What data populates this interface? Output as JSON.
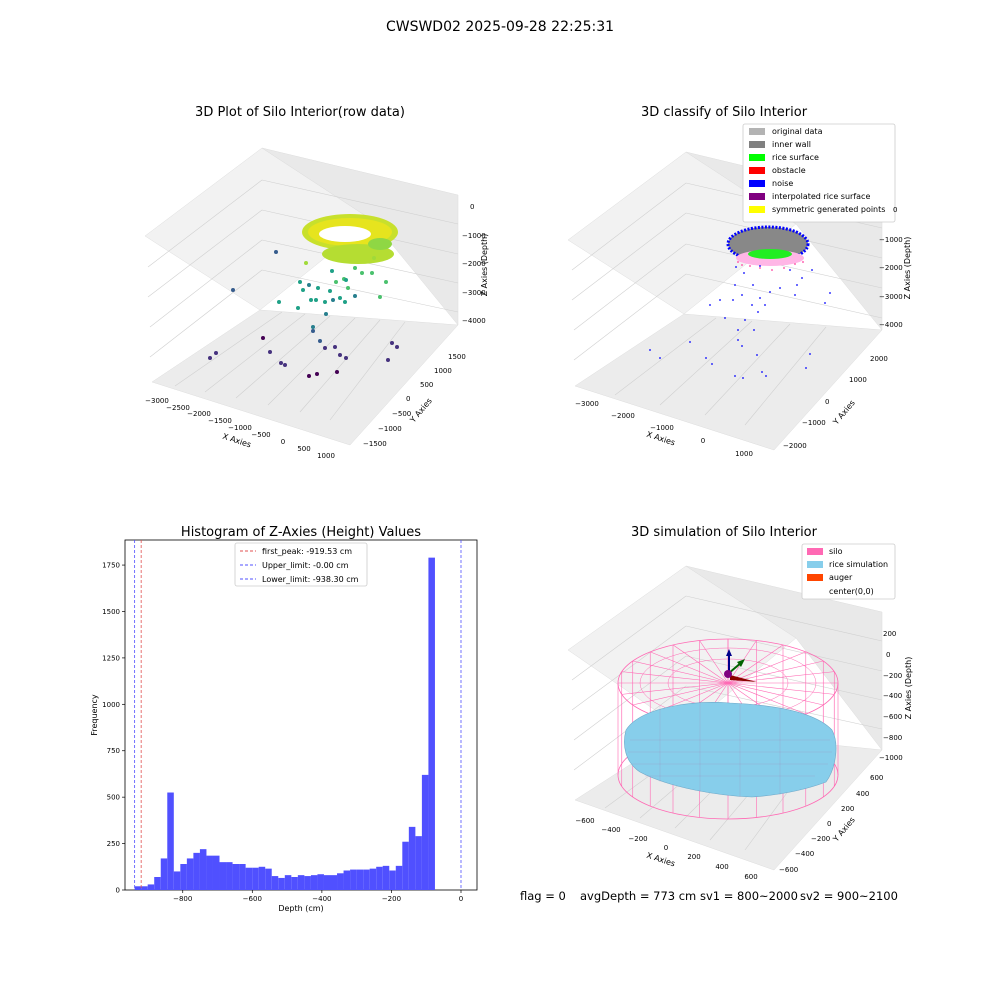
{
  "figure": {
    "suptitle": "CWSWD02 2025-09-28 22:25:31",
    "footer": {
      "flag": "flag = 0",
      "avg_depth": "avgDepth = 773 cm",
      "sv1": "sv1 = 800~2000",
      "sv2": "sv2 = 900~2100"
    }
  },
  "chart_data": [
    {
      "type": "scatter",
      "title": "3D Plot of Silo Interior(row data)",
      "xlabel": "X Axies",
      "ylabel": "Y Axies",
      "zlabel": "Z Axies (Depth)",
      "x_ticks": [
        "−3000",
        "−2500",
        "−2000",
        "−1500",
        "−1000",
        "−500",
        "0",
        "500",
        "1000"
      ],
      "y_ticks": [
        "1500",
        "1000",
        "500",
        "0",
        "−500",
        "−1000",
        "−1500"
      ],
      "z_ticks": [
        "0",
        "−1000",
        "−2000",
        "−3000",
        "−4000"
      ],
      "colormap": "viridis",
      "colors": [
        "#fde725",
        "#a0da39",
        "#4ac16d",
        "#1fa187",
        "#277f8e",
        "#365c8d",
        "#46327e",
        "#440154"
      ]
    },
    {
      "type": "scatter",
      "title": "3D classify of Silo Interior",
      "xlabel": "X Axies",
      "ylabel": "Y Axies",
      "zlabel": "Z Axies (Depth)",
      "x_ticks": [
        "−3000",
        "−2000",
        "−1000",
        "0",
        "1000"
      ],
      "y_ticks": [
        "2000",
        "1000",
        "0",
        "−1000",
        "−2000"
      ],
      "z_ticks": [
        "0",
        "−1000",
        "−2000",
        "−3000",
        "−4000"
      ],
      "legend": [
        {
          "label": "original data",
          "color": "#b3b3b3"
        },
        {
          "label": "inner wall",
          "color": "#808080"
        },
        {
          "label": "rice surface",
          "color": "#00ff00"
        },
        {
          "label": "obstacle",
          "color": "#ff0000"
        },
        {
          "label": "noise",
          "color": "#0000ff"
        },
        {
          "label": "interpolated rice surface",
          "color": "#800080"
        },
        {
          "label": "symmetric generated points",
          "color": "#ffff00"
        }
      ],
      "legend_placement": "upper-right"
    },
    {
      "type": "bar",
      "title": "Histogram of Z-Axies (Height) Values",
      "xlabel": "Depth (cm)",
      "ylabel": "Frequency",
      "xlim": [
        -966,
        46
      ],
      "ylim": [
        0,
        1885
      ],
      "x_ticks": [
        -800,
        -600,
        -400,
        -200,
        0
      ],
      "y_ticks": [
        0,
        250,
        500,
        750,
        1000,
        1250,
        1500,
        1750
      ],
      "bin_start": -938.3,
      "bin_width": 18.77,
      "values": [
        20,
        20,
        30,
        70,
        170,
        525,
        100,
        140,
        170,
        200,
        220,
        185,
        185,
        150,
        150,
        140,
        140,
        120,
        120,
        125,
        115,
        75,
        65,
        80,
        70,
        80,
        75,
        80,
        85,
        80,
        80,
        90,
        105,
        110,
        110,
        110,
        115,
        125,
        130,
        105,
        130,
        260,
        340,
        290,
        620,
        1790
      ],
      "bar_color": "#5050ff",
      "reference_lines": [
        {
          "label": "first_peak: -919.53 cm",
          "x": -919.53,
          "color": "#e05050"
        },
        {
          "label": "Upper_limit: -0.00 cm",
          "x": 0.0,
          "color": "#5050ff"
        },
        {
          "label": "Lower_limit: -938.30 cm",
          "x": -938.3,
          "color": "#5050ff"
        }
      ],
      "legend_placement": "upper-center"
    },
    {
      "type": "other",
      "title": "3D simulation of Silo Interior",
      "xlabel": "X Axies",
      "ylabel": "Y Axies",
      "zlabel": "Z Axies (Depth)",
      "x_ticks": [
        "−600",
        "−400",
        "−200",
        "0",
        "200",
        "400",
        "600"
      ],
      "y_ticks": [
        "600",
        "400",
        "200",
        "0",
        "−200",
        "−400",
        "−600"
      ],
      "z_ticks": [
        "200",
        "0",
        "−200",
        "−400",
        "−600",
        "−800",
        "−1000"
      ],
      "legend": [
        {
          "label": "silo",
          "color": "#ff69b4"
        },
        {
          "label": "rice simulation",
          "color": "#87ceeb"
        },
        {
          "label": "auger",
          "color": "#ff4500"
        },
        {
          "label": "center(0,0)",
          "color": "#ffffff"
        }
      ],
      "legend_placement": "upper-right"
    }
  ]
}
